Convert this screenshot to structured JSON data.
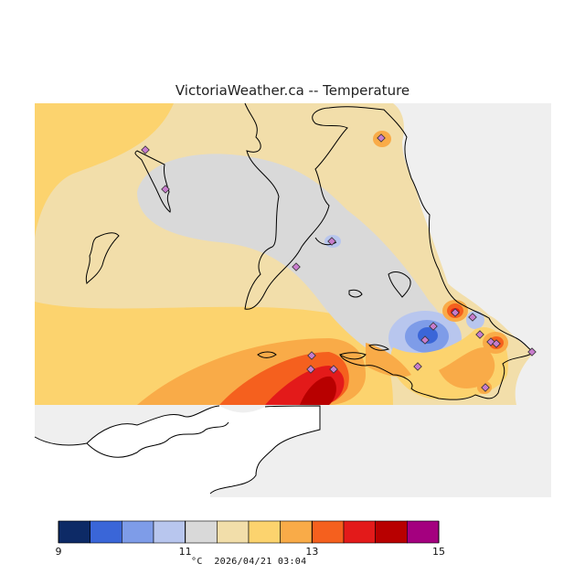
{
  "title": "VictoriaWeather.ca -- Temperature",
  "legend": {
    "unit": "°C",
    "timestamp": "2026/04/21 03:04",
    "tick_labels": [
      "9",
      "11",
      "13",
      "15"
    ],
    "bins": [
      {
        "from": 9.0,
        "to": 9.5,
        "color": "#0d2a66"
      },
      {
        "from": 9.5,
        "to": 10.0,
        "color": "#3a66d8"
      },
      {
        "from": 10.0,
        "to": 10.5,
        "color": "#7e9ce8"
      },
      {
        "from": 10.5,
        "to": 11.0,
        "color": "#b8c6ee"
      },
      {
        "from": 11.0,
        "to": 11.5,
        "color": "#d9d9d9"
      },
      {
        "from": 11.5,
        "to": 12.0,
        "color": "#f2deaa"
      },
      {
        "from": 12.0,
        "to": 12.5,
        "color": "#fcd36e"
      },
      {
        "from": 12.5,
        "to": 13.0,
        "color": "#f9ab48"
      },
      {
        "from": 13.0,
        "to": 13.5,
        "color": "#f5601e"
      },
      {
        "from": 13.5,
        "to": 14.0,
        "color": "#e31a1a"
      },
      {
        "from": 14.0,
        "to": 14.5,
        "color": "#b80000"
      },
      {
        "from": 14.5,
        "to": 15.0,
        "color": "#a4007f"
      }
    ]
  },
  "colors": {
    "water": "#efefef",
    "land_outline": "#000000",
    "station_marker": "#c77ccc"
  }
}
